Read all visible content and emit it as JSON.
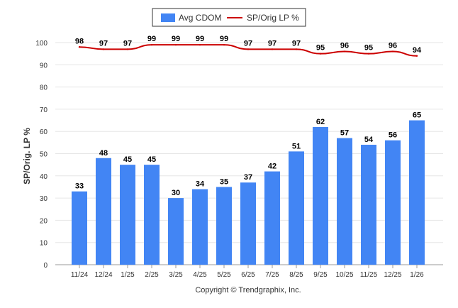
{
  "chart_data": {
    "type": "bar",
    "categories": [
      "11/24",
      "12/24",
      "1/25",
      "2/25",
      "3/25",
      "4/25",
      "5/25",
      "6/25",
      "7/25",
      "8/25",
      "9/25",
      "10/25",
      "11/25",
      "12/25",
      "1/26"
    ],
    "series": [
      {
        "name": "Avg CDOM",
        "type": "bar",
        "color": "#4285f4",
        "values": [
          33,
          48,
          45,
          45,
          30,
          34,
          35,
          37,
          42,
          51,
          62,
          57,
          54,
          56,
          65
        ]
      },
      {
        "name": "SP/Orig LP %",
        "type": "line",
        "color": "#cc0000",
        "values": [
          98,
          97,
          97,
          99,
          99,
          99,
          99,
          97,
          97,
          97,
          95,
          96,
          95,
          96,
          94
        ]
      }
    ],
    "ylabel": "SP/Orig. LP %",
    "xlabel": "",
    "ylim": [
      0,
      100
    ],
    "yticks": [
      0,
      10,
      20,
      30,
      40,
      50,
      60,
      70,
      80,
      90,
      100
    ],
    "grid": true,
    "legend_position": "top-center"
  },
  "footer": {
    "copyright": "Copyright © Trendgraphix, Inc."
  }
}
